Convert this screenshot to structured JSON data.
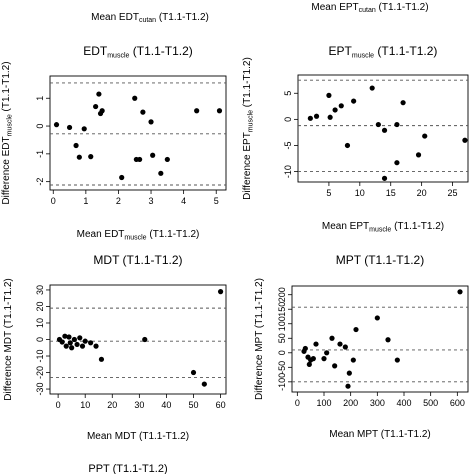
{
  "top_captions": [
    {
      "main": "Mean EDT",
      "sub": "cutan",
      "rest": " (T1.1-T1.2)"
    },
    {
      "main": "Mean EPT",
      "sub": "cutan",
      "rest": " (T1.1-T1.2)"
    }
  ],
  "bottom_caption": "PPT (T1.1-T1.2)",
  "chart_data": [
    {
      "type": "scatter",
      "title": {
        "main": "EDT",
        "sub": "muscle",
        "rest": " (T1.1-T1.2)"
      },
      "xlabel": {
        "main": "Mean EDT",
        "sub": "muscle",
        "rest": " (T1.1-T1.2)"
      },
      "ylabel": {
        "main": "Difference EDT",
        "sub": "muscle",
        "rest": " (T1.1-T1.2)"
      },
      "xlim": [
        -0.1,
        5.3
      ],
      "ylim": [
        -2.3,
        1.8
      ],
      "xticks": [
        0,
        1,
        2,
        3,
        4,
        5
      ],
      "yticks": [
        -2,
        -1,
        0,
        1
      ],
      "reference_lines": [
        1.55,
        -0.28,
        -2.12
      ],
      "points": [
        [
          0.1,
          0.05
        ],
        [
          0.5,
          -0.05
        ],
        [
          0.7,
          -0.7
        ],
        [
          0.8,
          -1.12
        ],
        [
          0.95,
          -0.1
        ],
        [
          1.15,
          -1.1
        ],
        [
          1.3,
          0.7
        ],
        [
          1.4,
          1.15
        ],
        [
          1.45,
          0.45
        ],
        [
          1.5,
          0.55
        ],
        [
          2.1,
          -1.85
        ],
        [
          2.5,
          1.0
        ],
        [
          2.55,
          -1.2
        ],
        [
          2.65,
          -1.2
        ],
        [
          2.75,
          0.5
        ],
        [
          3.0,
          0.15
        ],
        [
          3.05,
          -1.05
        ],
        [
          3.3,
          -1.7
        ],
        [
          3.5,
          -1.2
        ],
        [
          4.4,
          0.55
        ],
        [
          5.1,
          0.55
        ]
      ]
    },
    {
      "type": "scatter",
      "title": {
        "main": "EPT",
        "sub": "muscle",
        "rest": " (T1.1-T1.2)"
      },
      "xlabel": {
        "main": "Mean EPT",
        "sub": "muscle",
        "rest": " (T1.1-T1.2)"
      },
      "ylabel": {
        "main": "Difference EPT",
        "sub": "muscle",
        "rest": " (T1.1-T1.2)"
      },
      "xlim": [
        0,
        27.5
      ],
      "ylim": [
        -12,
        8.5
      ],
      "xticks": [
        5,
        10,
        15,
        20,
        25
      ],
      "yticks": [
        -10,
        -5,
        0,
        5
      ],
      "reference_lines": [
        7.5,
        -1.2,
        -10.0
      ],
      "points": [
        [
          2,
          0.2
        ],
        [
          3,
          0.6
        ],
        [
          5,
          4.6
        ],
        [
          5.2,
          0.4
        ],
        [
          6,
          1.8
        ],
        [
          7,
          2.6
        ],
        [
          8,
          -5
        ],
        [
          9,
          3.5
        ],
        [
          12,
          6
        ],
        [
          13,
          -1
        ],
        [
          14,
          -2.1
        ],
        [
          14,
          -11.3
        ],
        [
          16,
          -1
        ],
        [
          16,
          -8.3
        ],
        [
          17,
          3.2
        ],
        [
          19.5,
          -6.8
        ],
        [
          20.5,
          -3.2
        ],
        [
          27,
          -4
        ]
      ]
    },
    {
      "type": "scatter",
      "title": {
        "main": "MDT",
        "sub": "",
        "rest": " (T1.1-T1.2)"
      },
      "xlabel": {
        "main": "Mean MDT",
        "sub": "",
        "rest": " (T1.1-T1.2)"
      },
      "ylabel": {
        "main": "Difference MDT",
        "sub": "",
        "rest": " (T1.1-T1.2)"
      },
      "xlim": [
        -3,
        62
      ],
      "ylim": [
        -33,
        33
      ],
      "xticks": [
        0,
        10,
        20,
        30,
        40,
        50,
        60
      ],
      "yticks": [
        -30,
        -20,
        -10,
        0,
        10,
        20,
        30
      ],
      "reference_lines": [
        19,
        -1,
        -23
      ],
      "points": [
        [
          0.5,
          0
        ],
        [
          1.5,
          -1.5
        ],
        [
          2.5,
          2
        ],
        [
          3,
          -4
        ],
        [
          4,
          1.5
        ],
        [
          4.5,
          -2
        ],
        [
          5,
          -5
        ],
        [
          6,
          0
        ],
        [
          7,
          -3
        ],
        [
          8,
          1
        ],
        [
          9,
          -4
        ],
        [
          10,
          -1
        ],
        [
          12,
          -2
        ],
        [
          14,
          -4
        ],
        [
          16,
          -12
        ],
        [
          32,
          0
        ],
        [
          50,
          -20
        ],
        [
          54,
          -27
        ],
        [
          60,
          29
        ]
      ]
    },
    {
      "type": "scatter",
      "title": {
        "main": "MPT",
        "sub": "",
        "rest": " (T1.1-T1.2)"
      },
      "xlabel": {
        "main": "Mean MPT",
        "sub": "",
        "rest": " (T1.1-T1.2)"
      },
      "ylabel": {
        "main": "Difference MPT",
        "sub": "",
        "rest": " (T1.1-T1.2)"
      },
      "xlim": [
        -20,
        640
      ],
      "ylim": [
        -135,
        230
      ],
      "xticks": [
        0,
        100,
        200,
        300,
        400,
        500,
        600
      ],
      "yticks": [
        -100,
        -50,
        0,
        50,
        100,
        150,
        200
      ],
      "reference_lines": [
        157,
        10,
        -100
      ],
      "points": [
        [
          25,
          5
        ],
        [
          30,
          15
        ],
        [
          40,
          -15
        ],
        [
          45,
          -40
        ],
        [
          50,
          -25
        ],
        [
          60,
          -20
        ],
        [
          70,
          30
        ],
        [
          100,
          -20
        ],
        [
          110,
          0
        ],
        [
          130,
          50
        ],
        [
          140,
          -45
        ],
        [
          160,
          30
        ],
        [
          180,
          20
        ],
        [
          190,
          -115
        ],
        [
          195,
          -70
        ],
        [
          210,
          -25
        ],
        [
          220,
          80
        ],
        [
          300,
          120
        ],
        [
          340,
          45
        ],
        [
          375,
          -25
        ],
        [
          610,
          210
        ]
      ]
    }
  ]
}
